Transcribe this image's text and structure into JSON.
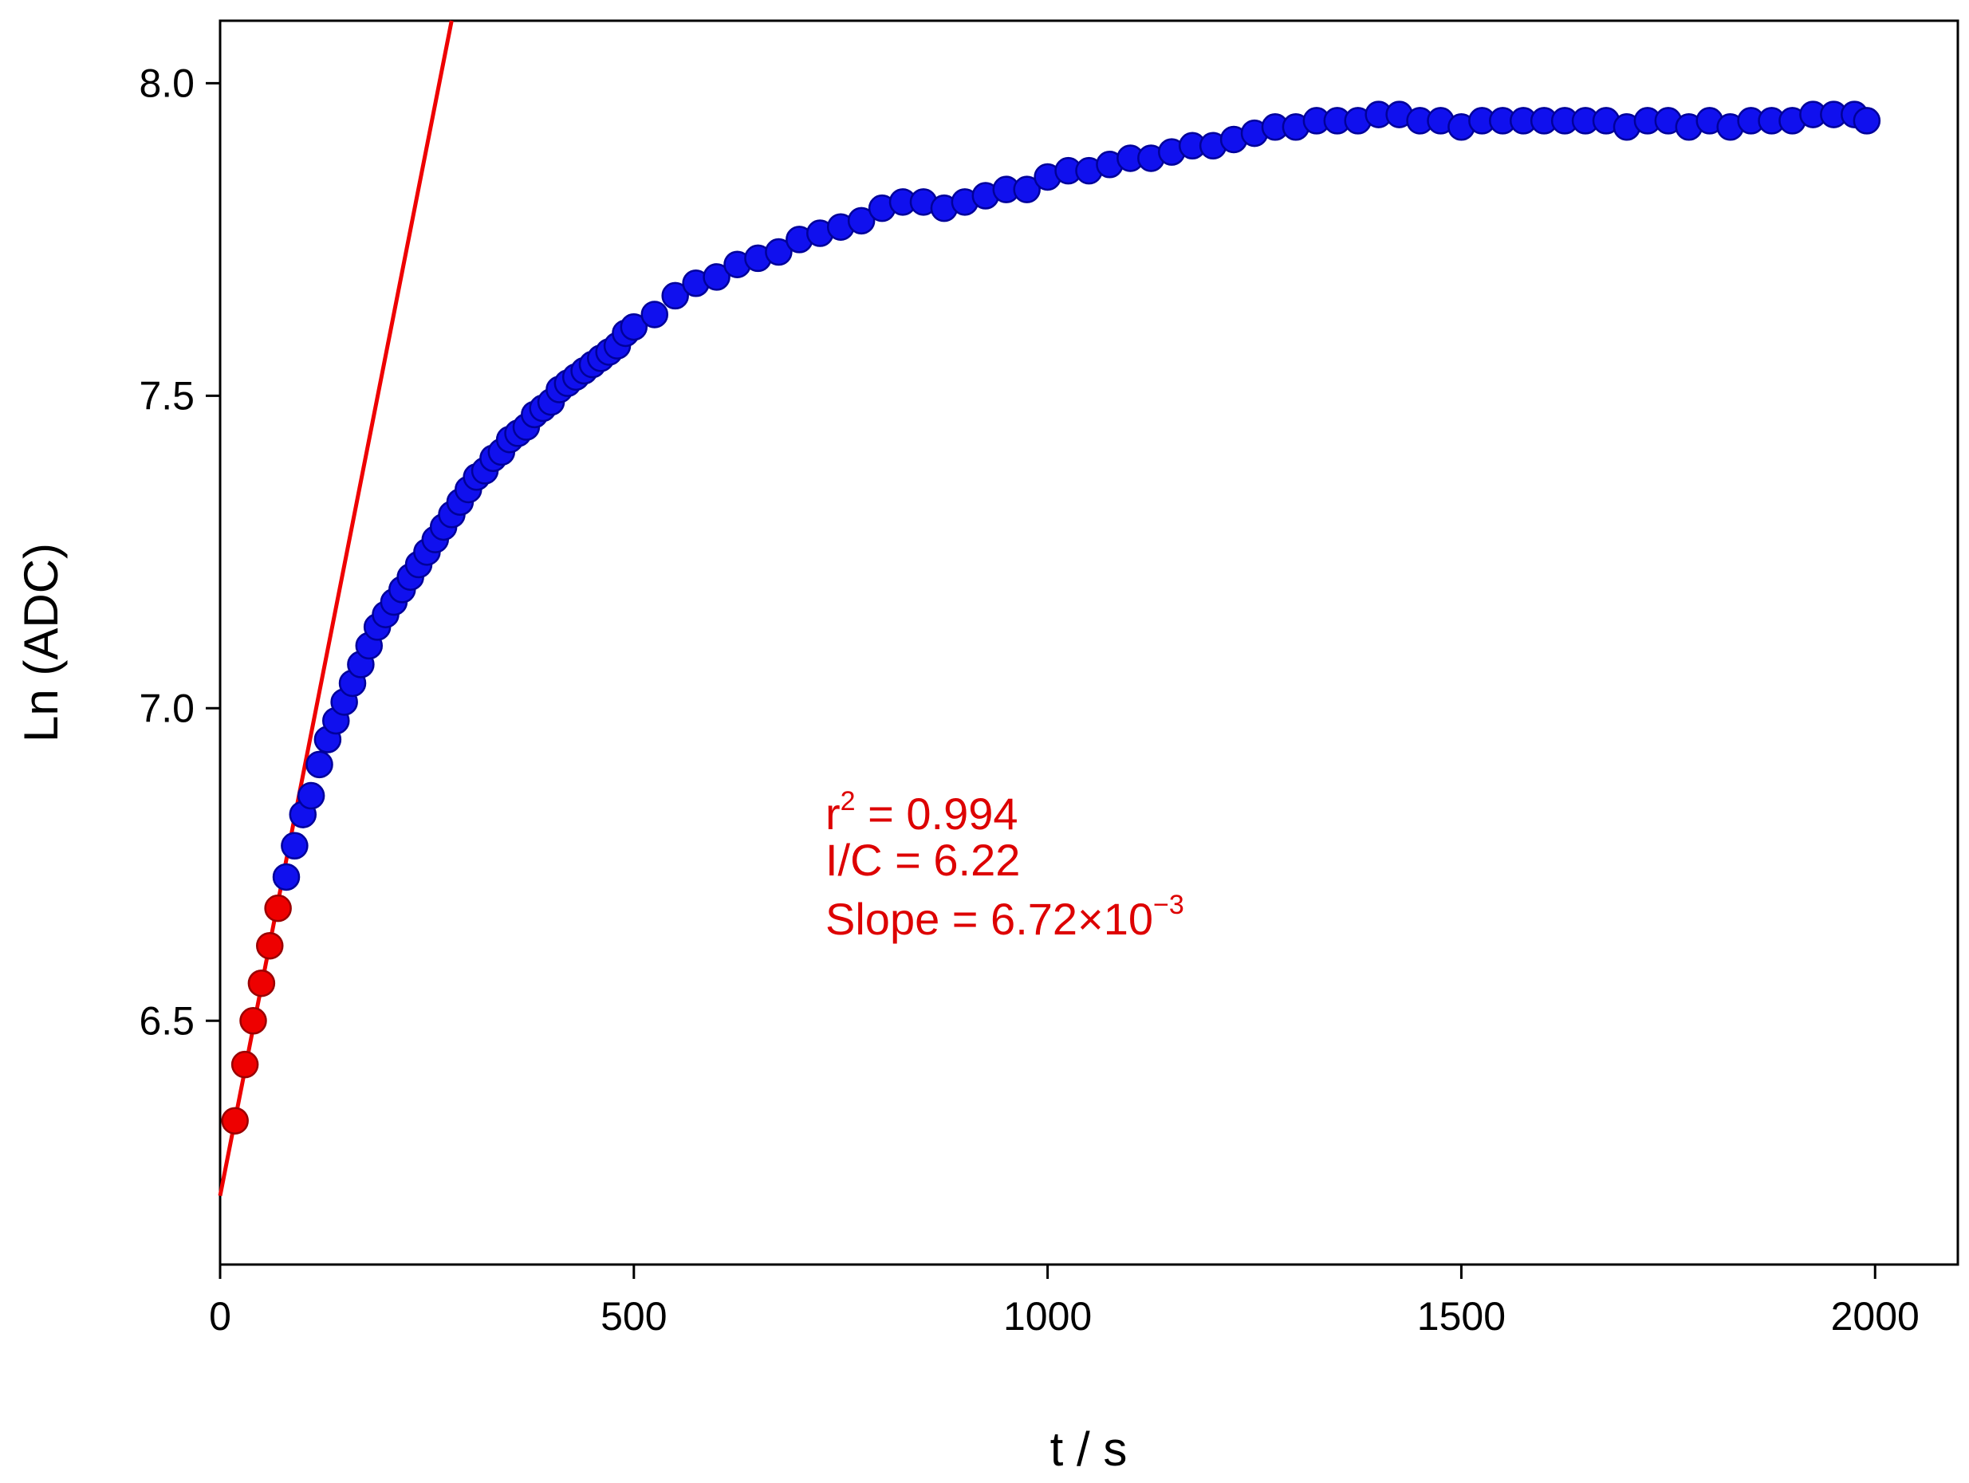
{
  "chart_data": {
    "type": "scatter",
    "xlabel": "t  / s",
    "ylabel": "Ln (ADC)",
    "xlim": [
      0,
      2100
    ],
    "ylim": [
      6.11,
      8.1
    ],
    "x_ticks": [
      0,
      500,
      1000,
      1500,
      2000
    ],
    "x_tick_labels": [
      "0",
      "500",
      "1000",
      "1500",
      "2000"
    ],
    "y_ticks": [
      6.5,
      7.0,
      7.5,
      8.0
    ],
    "y_tick_labels": [
      "6.5",
      "7.0",
      "7.5",
      "8.0"
    ],
    "grid": false,
    "colors": {
      "blue_points": "#1010ee",
      "red_points": "#ee0000",
      "fit_line": "#ee0000",
      "annotation": "#dd0000"
    },
    "series": [
      {
        "role": "measured",
        "marker": "circle",
        "color": "#1010ee",
        "points": [
          [
            80,
            6.73
          ],
          [
            90,
            6.78
          ],
          [
            100,
            6.83
          ],
          [
            110,
            6.86
          ],
          [
            120,
            6.91
          ],
          [
            130,
            6.95
          ],
          [
            140,
            6.98
          ],
          [
            150,
            7.01
          ],
          [
            160,
            7.04
          ],
          [
            170,
            7.07
          ],
          [
            180,
            7.1
          ],
          [
            190,
            7.13
          ],
          [
            200,
            7.15
          ],
          [
            210,
            7.17
          ],
          [
            220,
            7.19
          ],
          [
            230,
            7.21
          ],
          [
            240,
            7.23
          ],
          [
            250,
            7.25
          ],
          [
            260,
            7.27
          ],
          [
            270,
            7.29
          ],
          [
            280,
            7.31
          ],
          [
            290,
            7.33
          ],
          [
            300,
            7.35
          ],
          [
            310,
            7.37
          ],
          [
            320,
            7.38
          ],
          [
            330,
            7.4
          ],
          [
            340,
            7.41
          ],
          [
            350,
            7.43
          ],
          [
            360,
            7.44
          ],
          [
            370,
            7.45
          ],
          [
            380,
            7.47
          ],
          [
            390,
            7.48
          ],
          [
            400,
            7.49
          ],
          [
            410,
            7.51
          ],
          [
            420,
            7.52
          ],
          [
            430,
            7.53
          ],
          [
            440,
            7.54
          ],
          [
            450,
            7.55
          ],
          [
            460,
            7.56
          ],
          [
            470,
            7.57
          ],
          [
            480,
            7.58
          ],
          [
            490,
            7.6
          ],
          [
            500,
            7.61
          ],
          [
            525,
            7.63
          ],
          [
            550,
            7.66
          ],
          [
            575,
            7.68
          ],
          [
            600,
            7.69
          ],
          [
            625,
            7.71
          ],
          [
            650,
            7.72
          ],
          [
            675,
            7.73
          ],
          [
            700,
            7.75
          ],
          [
            725,
            7.76
          ],
          [
            750,
            7.77
          ],
          [
            775,
            7.78
          ],
          [
            800,
            7.8
          ],
          [
            825,
            7.81
          ],
          [
            850,
            7.81
          ],
          [
            875,
            7.8
          ],
          [
            900,
            7.81
          ],
          [
            925,
            7.82
          ],
          [
            950,
            7.83
          ],
          [
            975,
            7.83
          ],
          [
            1000,
            7.85
          ],
          [
            1025,
            7.86
          ],
          [
            1050,
            7.86
          ],
          [
            1075,
            7.87
          ],
          [
            1100,
            7.88
          ],
          [
            1125,
            7.88
          ],
          [
            1150,
            7.89
          ],
          [
            1175,
            7.9
          ],
          [
            1200,
            7.9
          ],
          [
            1225,
            7.91
          ],
          [
            1250,
            7.92
          ],
          [
            1275,
            7.93
          ],
          [
            1300,
            7.93
          ],
          [
            1325,
            7.94
          ],
          [
            1350,
            7.94
          ],
          [
            1375,
            7.94
          ],
          [
            1400,
            7.95
          ],
          [
            1425,
            7.95
          ],
          [
            1450,
            7.94
          ],
          [
            1475,
            7.94
          ],
          [
            1500,
            7.93
          ],
          [
            1525,
            7.94
          ],
          [
            1550,
            7.94
          ],
          [
            1575,
            7.94
          ],
          [
            1600,
            7.94
          ],
          [
            1625,
            7.94
          ],
          [
            1650,
            7.94
          ],
          [
            1675,
            7.94
          ],
          [
            1700,
            7.93
          ],
          [
            1725,
            7.94
          ],
          [
            1750,
            7.94
          ],
          [
            1775,
            7.93
          ],
          [
            1800,
            7.94
          ],
          [
            1825,
            7.93
          ],
          [
            1850,
            7.94
          ],
          [
            1875,
            7.94
          ],
          [
            1900,
            7.94
          ],
          [
            1925,
            7.95
          ],
          [
            1950,
            7.95
          ],
          [
            1975,
            7.95
          ],
          [
            1990,
            7.94
          ]
        ]
      },
      {
        "role": "fitted",
        "marker": "circle",
        "color": "#ee0000",
        "points": [
          [
            18,
            6.34
          ],
          [
            30,
            6.43
          ],
          [
            40,
            6.5
          ],
          [
            50,
            6.56
          ],
          [
            60,
            6.62
          ],
          [
            70,
            6.68
          ]
        ]
      }
    ],
    "fit_line": {
      "intercept": 6.22,
      "slope": 0.00672,
      "x_range": [
        0,
        290
      ]
    },
    "annotation": {
      "r2_label": "r",
      "r2_sup": "2",
      "r2_value": " = 0.994",
      "ic_text": "I/C = 6.22",
      "slope_prefix": "Slope = 6.72×10",
      "slope_sup": "−3"
    }
  }
}
